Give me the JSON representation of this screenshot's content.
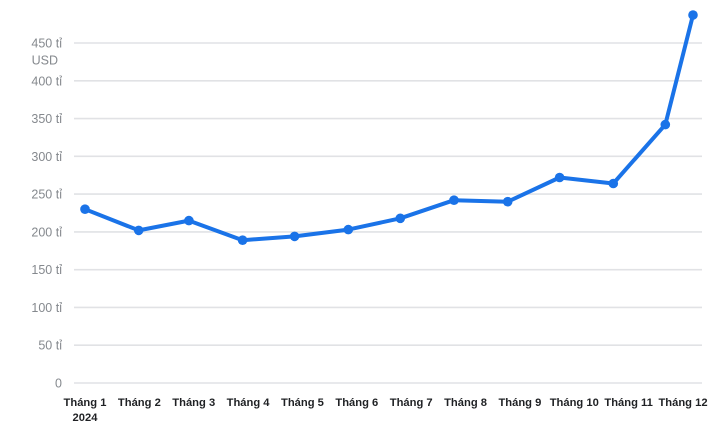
{
  "chart_data": {
    "type": "line",
    "title": "",
    "legend": "none",
    "grid": true,
    "x_axis": {
      "tick_labels": [
        [
          "Tháng 1",
          "2024"
        ],
        [
          "Tháng 2"
        ],
        [
          "Tháng 3"
        ],
        [
          "Tháng 4"
        ],
        [
          "Tháng 5"
        ],
        [
          "Tháng 6"
        ],
        [
          "Tháng 7"
        ],
        [
          "Tháng 8"
        ],
        [
          "Tháng 9"
        ],
        [
          "Tháng 10"
        ],
        [
          "Tháng 11"
        ],
        [
          "Tháng 12"
        ]
      ]
    },
    "y_axis": {
      "unit": "tỉ USD",
      "drawn_range": [
        0,
        450
      ],
      "ticks": [
        {
          "value": 0,
          "lines": [
            "0"
          ]
        },
        {
          "value": 50,
          "lines": [
            "50 tỉ"
          ]
        },
        {
          "value": 100,
          "lines": [
            "100 tỉ"
          ]
        },
        {
          "value": 150,
          "lines": [
            "150 tỉ"
          ]
        },
        {
          "value": 200,
          "lines": [
            "200 tỉ"
          ]
        },
        {
          "value": 250,
          "lines": [
            "250 tỉ"
          ]
        },
        {
          "value": 300,
          "lines": [
            "300 tỉ"
          ]
        },
        {
          "value": 350,
          "lines": [
            "350 tỉ"
          ]
        },
        {
          "value": 400,
          "lines": [
            "400 tỉ"
          ]
        },
        {
          "value": 450,
          "lines": [
            "450 tỉ",
            "USD"
          ]
        }
      ]
    },
    "series": [
      {
        "points": [
          {
            "day": 0,
            "month_label": "Tháng 1",
            "value": 230
          },
          {
            "day": 31,
            "month_label": "Tháng 2",
            "value": 202
          },
          {
            "day": 60,
            "month_label": "Tháng 3",
            "value": 215
          },
          {
            "day": 91,
            "month_label": "Tháng 4",
            "value": 189
          },
          {
            "day": 121,
            "month_label": "Tháng 5",
            "value": 194
          },
          {
            "day": 152,
            "month_label": "Tháng 6",
            "value": 203
          },
          {
            "day": 182,
            "month_label": "Tháng 7",
            "value": 218
          },
          {
            "day": 213,
            "month_label": "Tháng 8",
            "value": 242
          },
          {
            "day": 244,
            "month_label": "Tháng 9",
            "value": 240
          },
          {
            "day": 274,
            "month_label": "Tháng 10",
            "value": 272
          },
          {
            "day": 305,
            "month_label": "Tháng 11",
            "value": 264
          },
          {
            "day": 335,
            "month_label": "Tháng 12",
            "value": 342
          },
          {
            "day": 351,
            "month_label": "Tháng 12",
            "value": 487
          }
        ]
      }
    ],
    "colors": {
      "line": "#1a73e8",
      "point": "#1a73e8",
      "grid": "#e1e2e5",
      "y_tick_text": "#85898e",
      "x_tick_text": "#1f2124",
      "background": "#ffffff"
    }
  }
}
